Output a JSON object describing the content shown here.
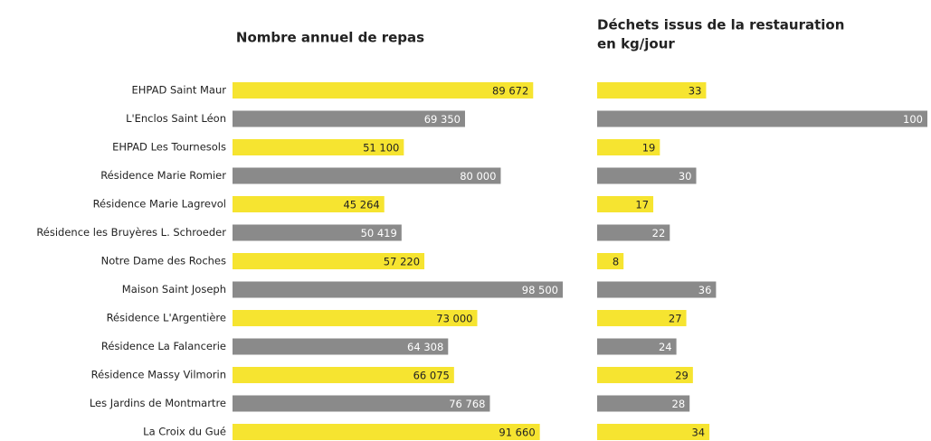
{
  "chart_data": [
    {
      "type": "hbar",
      "title": [
        "Nombre annuel de repas"
      ],
      "categories": [
        "EHPAD Saint Maur",
        "L'Enclos Saint Léon",
        "EHPAD Les Tournesols",
        "Résidence Marie Romier",
        "Résidence Marie Lagrevol",
        "Résidence les Bruyères L. Schroeder",
        "Notre Dame des Roches",
        "Maison Saint Joseph",
        "Résidence L'Argentière",
        "Résidence La Falancerie",
        "Résidence Massy Vilmorin",
        "Les Jardins de Montmartre",
        "La Croix du Gué"
      ],
      "values": [
        89672,
        69350,
        51100,
        80000,
        45264,
        50419,
        57220,
        98500,
        73000,
        64308,
        66075,
        76768,
        91660
      ],
      "value_labels": [
        "89 672",
        "69 350",
        "51 100",
        "80 000",
        "45 264",
        "50 419",
        "57 220",
        "98 500",
        "73 000",
        "64 308",
        "66 075",
        "76 768",
        "91 660"
      ],
      "colors": [
        "#f6e430",
        "#8a8a8a",
        "#f6e430",
        "#8a8a8a",
        "#f6e430",
        "#8a8a8a",
        "#f6e430",
        "#8a8a8a",
        "#f6e430",
        "#8a8a8a",
        "#f6e430",
        "#8a8a8a",
        "#f6e430"
      ]
    },
    {
      "type": "hbar",
      "title": [
        "Déchets issus de la restauration",
        "en kg/jour"
      ],
      "values": [
        33,
        100,
        19,
        30,
        17,
        22,
        8,
        36,
        27,
        24,
        29,
        28,
        34
      ],
      "colors": [
        "#f6e430",
        "#8a8a8a",
        "#f6e430",
        "#8a8a8a",
        "#f6e430",
        "#8a8a8a",
        "#f6e430",
        "#8a8a8a",
        "#f6e430",
        "#8a8a8a",
        "#f6e430",
        "#8a8a8a",
        "#f6e430"
      ]
    }
  ]
}
